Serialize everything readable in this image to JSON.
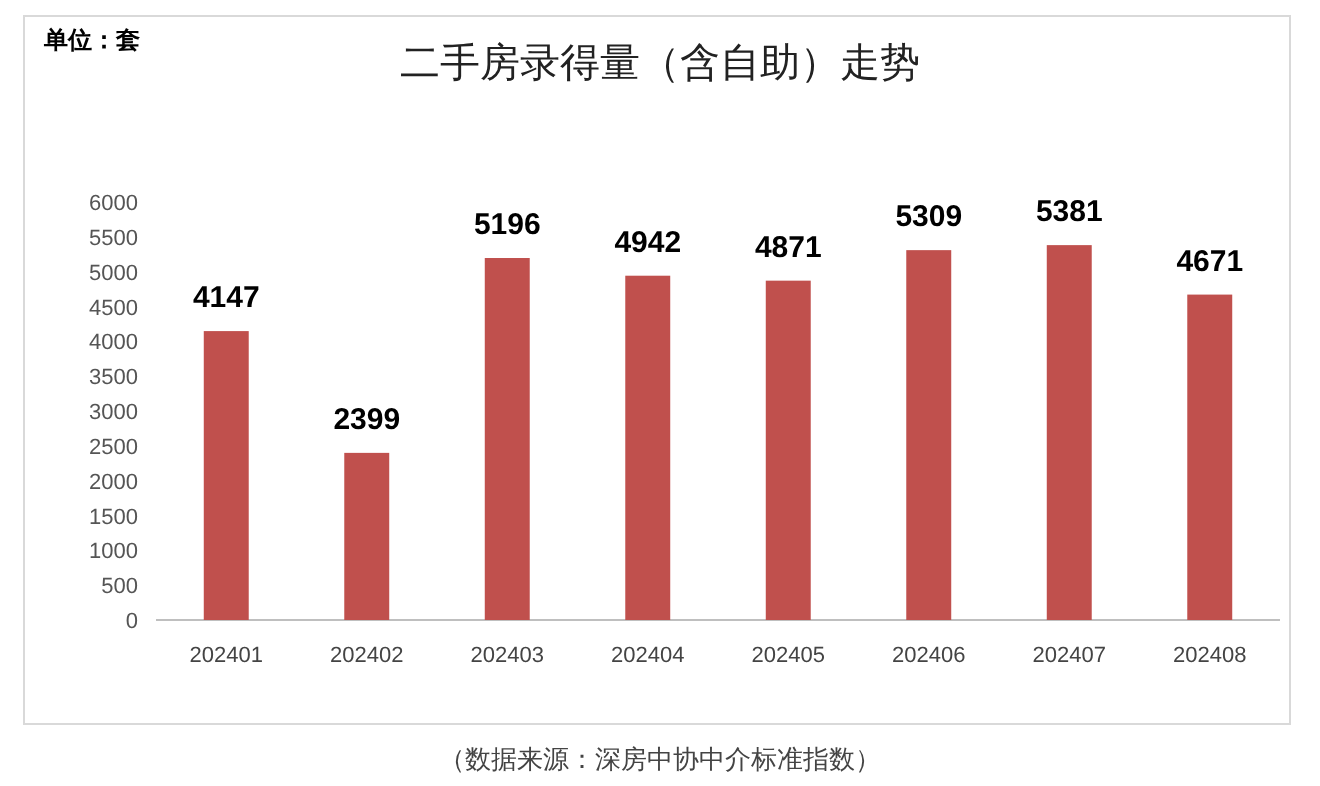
{
  "chart_data": {
    "type": "bar",
    "title": "二手房录得量（含自助）走势",
    "categories": [
      "202401",
      "202402",
      "202403",
      "202404",
      "202405",
      "202406",
      "202407",
      "202408"
    ],
    "values": [
      4147,
      2399,
      5196,
      4942,
      4871,
      5309,
      5381,
      4671
    ],
    "color": "#c0504d",
    "ylim": [
      0,
      6000
    ],
    "yticks": [
      0,
      500,
      1000,
      1500,
      2000,
      2500,
      3000,
      3500,
      4000,
      4500,
      5000,
      5500,
      6000
    ],
    "data_labels": true,
    "grid": false,
    "legend": false,
    "annotations": [
      "单位：套",
      "（数据来源：深房中协中介标准指数）"
    ]
  }
}
